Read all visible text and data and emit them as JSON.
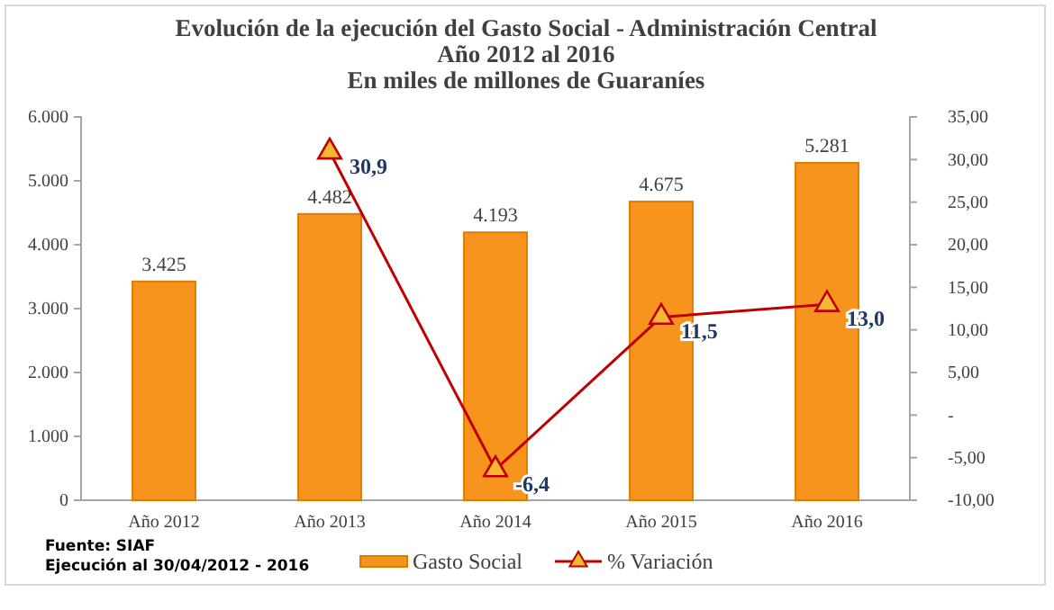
{
  "chart_data": {
    "type": "bar",
    "title": "Evolución de la ejecución del Gasto Social - Administración Central\nAño 2012 al 2016\nEn miles de millones de Guaraníes",
    "categories": [
      "Año 2012",
      "Año 2013",
      "Año 2014",
      "Año 2015",
      "Año 2016"
    ],
    "series": [
      {
        "name": "Gasto Social",
        "color": "#f7941d",
        "values": [
          3425,
          4482,
          4193,
          4675,
          5281
        ],
        "value_labels": [
          "3.425",
          "4.482",
          "4.193",
          "4.675",
          "5.281"
        ]
      },
      {
        "name": "% Variación",
        "type": "line",
        "axis": "y2",
        "color": "#c00000",
        "marker": "triangle",
        "values": [
          null,
          30.9,
          -6.4,
          11.5,
          13.0
        ],
        "value_labels": [
          null,
          "30,9",
          "-6,4",
          "11,5",
          "13,0"
        ]
      }
    ],
    "ylim": [
      0,
      6000
    ],
    "yticks": [
      0,
      {
        "value": 1000,
        "label": "1.000"
      },
      {
        "value": 2000,
        "label": "2.000"
      },
      {
        "value": 3000,
        "label": "3.000"
      },
      {
        "value": 4000,
        "label": "4.000"
      },
      {
        "value": 5000,
        "label": "5.000"
      },
      {
        "value": 6000,
        "label": "6.000"
      }
    ],
    "y2lim": [
      -10,
      35
    ],
    "y2ticks": [
      {
        "value": -10,
        "label": "-10,00"
      },
      {
        "value": -5,
        "label": "-5,00"
      },
      {
        "value": 0,
        "label": "-"
      },
      {
        "value": 5,
        "label": "5,00"
      },
      {
        "value": 10,
        "label": "10,00"
      },
      {
        "value": 15,
        "label": "15,00"
      },
      {
        "value": 20,
        "label": "20,00"
      },
      {
        "value": 25,
        "label": "25,00"
      },
      {
        "value": 30,
        "label": "30,00"
      },
      {
        "value": 35,
        "label": "35,00"
      }
    ],
    "legend": "bottom",
    "annotations": [
      "Fuente: SIAF",
      "Ejecución al 30/04/2012 - 2016"
    ]
  }
}
